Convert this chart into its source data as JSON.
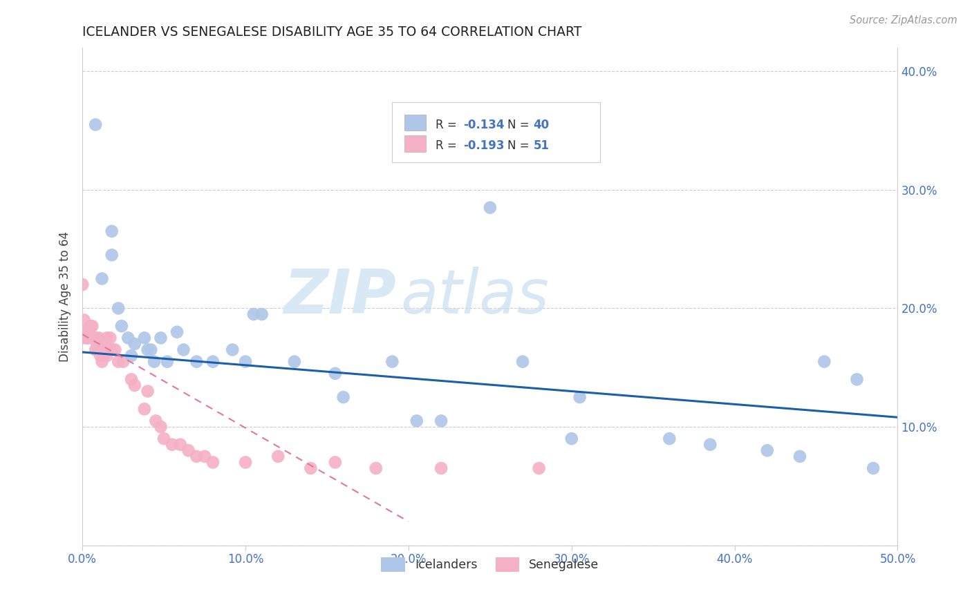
{
  "title": "ICELANDER VS SENEGALESE DISABILITY AGE 35 TO 64 CORRELATION CHART",
  "source": "Source: ZipAtlas.com",
  "ylabel": "Disability Age 35 to 64",
  "xlim": [
    0.0,
    0.5
  ],
  "ylim": [
    0.0,
    0.42
  ],
  "xticks": [
    0.0,
    0.1,
    0.2,
    0.3,
    0.4,
    0.5
  ],
  "xtick_labels": [
    "0.0%",
    "10.0%",
    "20.0%",
    "30.0%",
    "40.0%",
    "50.0%"
  ],
  "yticks": [
    0.0,
    0.1,
    0.2,
    0.3,
    0.4
  ],
  "ytick_labels": [
    "",
    "10.0%",
    "20.0%",
    "30.0%",
    "40.0%"
  ],
  "r_icelander": -0.134,
  "n_icelander": 40,
  "r_senegalese": -0.193,
  "n_senegalese": 51,
  "color_icelander": "#aec6e8",
  "color_senegalese": "#f4b0c4",
  "line_color_icelander": "#1a5faa",
  "line_color_senegalese": "#e07898",
  "icelander_x": [
    0.008,
    0.012,
    0.018,
    0.018,
    0.022,
    0.024,
    0.028,
    0.03,
    0.032,
    0.038,
    0.04,
    0.042,
    0.044,
    0.048,
    0.052,
    0.058,
    0.062,
    0.07,
    0.08,
    0.092,
    0.1,
    0.105,
    0.11,
    0.13,
    0.155,
    0.16,
    0.19,
    0.205,
    0.22,
    0.25,
    0.27,
    0.3,
    0.305,
    0.36,
    0.385,
    0.42,
    0.44,
    0.455,
    0.475,
    0.485
  ],
  "icelander_y": [
    0.355,
    0.225,
    0.265,
    0.245,
    0.2,
    0.185,
    0.175,
    0.16,
    0.17,
    0.175,
    0.165,
    0.165,
    0.155,
    0.175,
    0.155,
    0.18,
    0.165,
    0.155,
    0.155,
    0.165,
    0.155,
    0.195,
    0.195,
    0.155,
    0.145,
    0.125,
    0.155,
    0.105,
    0.105,
    0.285,
    0.155,
    0.09,
    0.125,
    0.09,
    0.085,
    0.08,
    0.075,
    0.155,
    0.14,
    0.065
  ],
  "senegalese_x": [
    0.0,
    0.001,
    0.001,
    0.002,
    0.003,
    0.003,
    0.004,
    0.005,
    0.006,
    0.006,
    0.007,
    0.008,
    0.008,
    0.009,
    0.009,
    0.01,
    0.01,
    0.011,
    0.011,
    0.012,
    0.012,
    0.013,
    0.014,
    0.015,
    0.015,
    0.016,
    0.017,
    0.018,
    0.02,
    0.022,
    0.025,
    0.03,
    0.032,
    0.038,
    0.04,
    0.045,
    0.048,
    0.05,
    0.055,
    0.06,
    0.065,
    0.07,
    0.075,
    0.08,
    0.1,
    0.12,
    0.14,
    0.155,
    0.18,
    0.22,
    0.28
  ],
  "senegalese_y": [
    0.22,
    0.19,
    0.175,
    0.18,
    0.18,
    0.175,
    0.175,
    0.185,
    0.185,
    0.175,
    0.175,
    0.175,
    0.165,
    0.17,
    0.165,
    0.175,
    0.165,
    0.165,
    0.16,
    0.165,
    0.155,
    0.16,
    0.165,
    0.175,
    0.16,
    0.165,
    0.175,
    0.165,
    0.165,
    0.155,
    0.155,
    0.14,
    0.135,
    0.115,
    0.13,
    0.105,
    0.1,
    0.09,
    0.085,
    0.085,
    0.08,
    0.075,
    0.075,
    0.07,
    0.07,
    0.075,
    0.065,
    0.07,
    0.065,
    0.065,
    0.065
  ],
  "watermark_zip": "ZIP",
  "watermark_atlas": "atlas",
  "grid_color": "#cccccc",
  "background_color": "#ffffff",
  "trend_ice_x0": 0.0,
  "trend_ice_y0": 0.163,
  "trend_ice_x1": 0.5,
  "trend_ice_y1": 0.108,
  "trend_sen_x0": 0.0,
  "trend_sen_y0": 0.178,
  "trend_sen_x1": 0.2,
  "trend_sen_y1": 0.02
}
